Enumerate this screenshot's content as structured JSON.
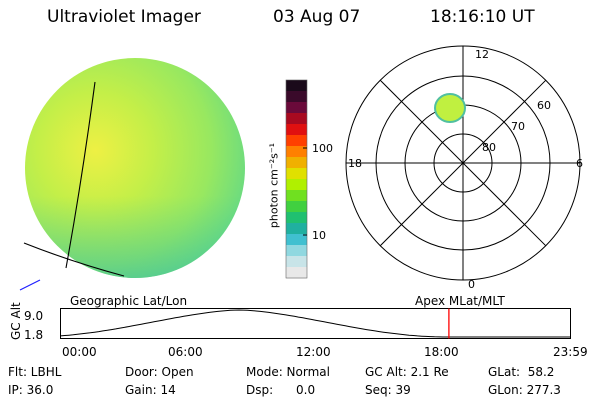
{
  "header": {
    "instrument": "Ultraviolet Imager",
    "date": "03 Aug 07",
    "time": "18:16:10 UT"
  },
  "colorbar": {
    "unit_label": "photon cm⁻²s⁻¹",
    "tick_100": "100",
    "tick_10": "10",
    "colors": [
      "#1a0a1a",
      "#3a0a2a",
      "#6a0a3a",
      "#a80a20",
      "#e01010",
      "#ff4000",
      "#ff8000",
      "#f0b000",
      "#e0e000",
      "#b0f000",
      "#70e020",
      "#40d040",
      "#20c070",
      "#20b0a0",
      "#40c0d0",
      "#90d8e0",
      "#c8e4e8",
      "#e8e8e8"
    ]
  },
  "polar_plot": {
    "label_top": "12",
    "label_bottom": "0",
    "label_left": "18",
    "label_right": "6",
    "lat_60": "60",
    "lat_70": "70",
    "lat_80": "80"
  },
  "timeline": {
    "left_label": "Geographic Lat/Lon",
    "right_label": "Apex MLat/MLT",
    "axis_label": "GC Alt",
    "y_max": "9.0",
    "y_min": "1.8",
    "t0": "00:00",
    "t1": "06:00",
    "t2": "12:00",
    "t3": "18:00",
    "t4": "23:59",
    "current_time_fraction": 0.7615,
    "marker_color": "#ff0000"
  },
  "status": {
    "flt": "Flt: LBHL",
    "ip": "IP: 36.0",
    "door": "Door: Open",
    "gain": "Gain: 14",
    "mode": "Mode: Normal",
    "dsp": "Dsp:      0.0",
    "gc_alt": "GC Alt: 2.1 Re",
    "seq": "Seq: 39",
    "glat": "GLat:  58.2",
    "glon": "GLon: 277.3"
  },
  "colors": {
    "disc_base": "#aaf050",
    "disc_bright": "#e8f040",
    "disc_cool": "#50d090",
    "aurora_spot": "#c0f040",
    "limb_blue": "#2020ff"
  }
}
